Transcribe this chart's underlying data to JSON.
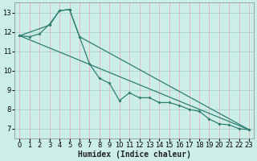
{
  "bg_color": "#cceee8",
  "plot_bg_color": "#cceee8",
  "grid_color_h": "#aad8d0",
  "grid_color_v": "#e8b8c0",
  "line_color": "#2e7d70",
  "xlabel": "Humidex (Indice chaleur)",
  "xlim": [
    -0.5,
    23.5
  ],
  "ylim": [
    6.5,
    13.5
  ],
  "yticks": [
    7,
    8,
    9,
    10,
    11,
    12,
    13
  ],
  "xticks": [
    0,
    1,
    2,
    3,
    4,
    5,
    6,
    7,
    8,
    9,
    10,
    11,
    12,
    13,
    14,
    15,
    16,
    17,
    18,
    19,
    20,
    21,
    22,
    23
  ],
  "series1_x": [
    0,
    1,
    2,
    3,
    4,
    5,
    6,
    7,
    8,
    9,
    10,
    11,
    12,
    13,
    14,
    15,
    16,
    17,
    18,
    19,
    20,
    21,
    22,
    23
  ],
  "series1_y": [
    11.8,
    11.75,
    11.9,
    12.4,
    13.1,
    13.15,
    11.75,
    10.35,
    9.6,
    9.35,
    8.45,
    8.85,
    8.6,
    8.6,
    8.35,
    8.35,
    8.2,
    8.0,
    7.9,
    7.5,
    7.25,
    7.2,
    7.0,
    6.95
  ],
  "series2_x": [
    0,
    3,
    4,
    5,
    6,
    23
  ],
  "series2_y": [
    11.8,
    12.35,
    13.1,
    13.15,
    11.75,
    6.95
  ],
  "series3_x": [
    0,
    23
  ],
  "series3_y": [
    11.8,
    6.95
  ],
  "xlabel_fontsize": 7,
  "tick_fontsize": 6
}
